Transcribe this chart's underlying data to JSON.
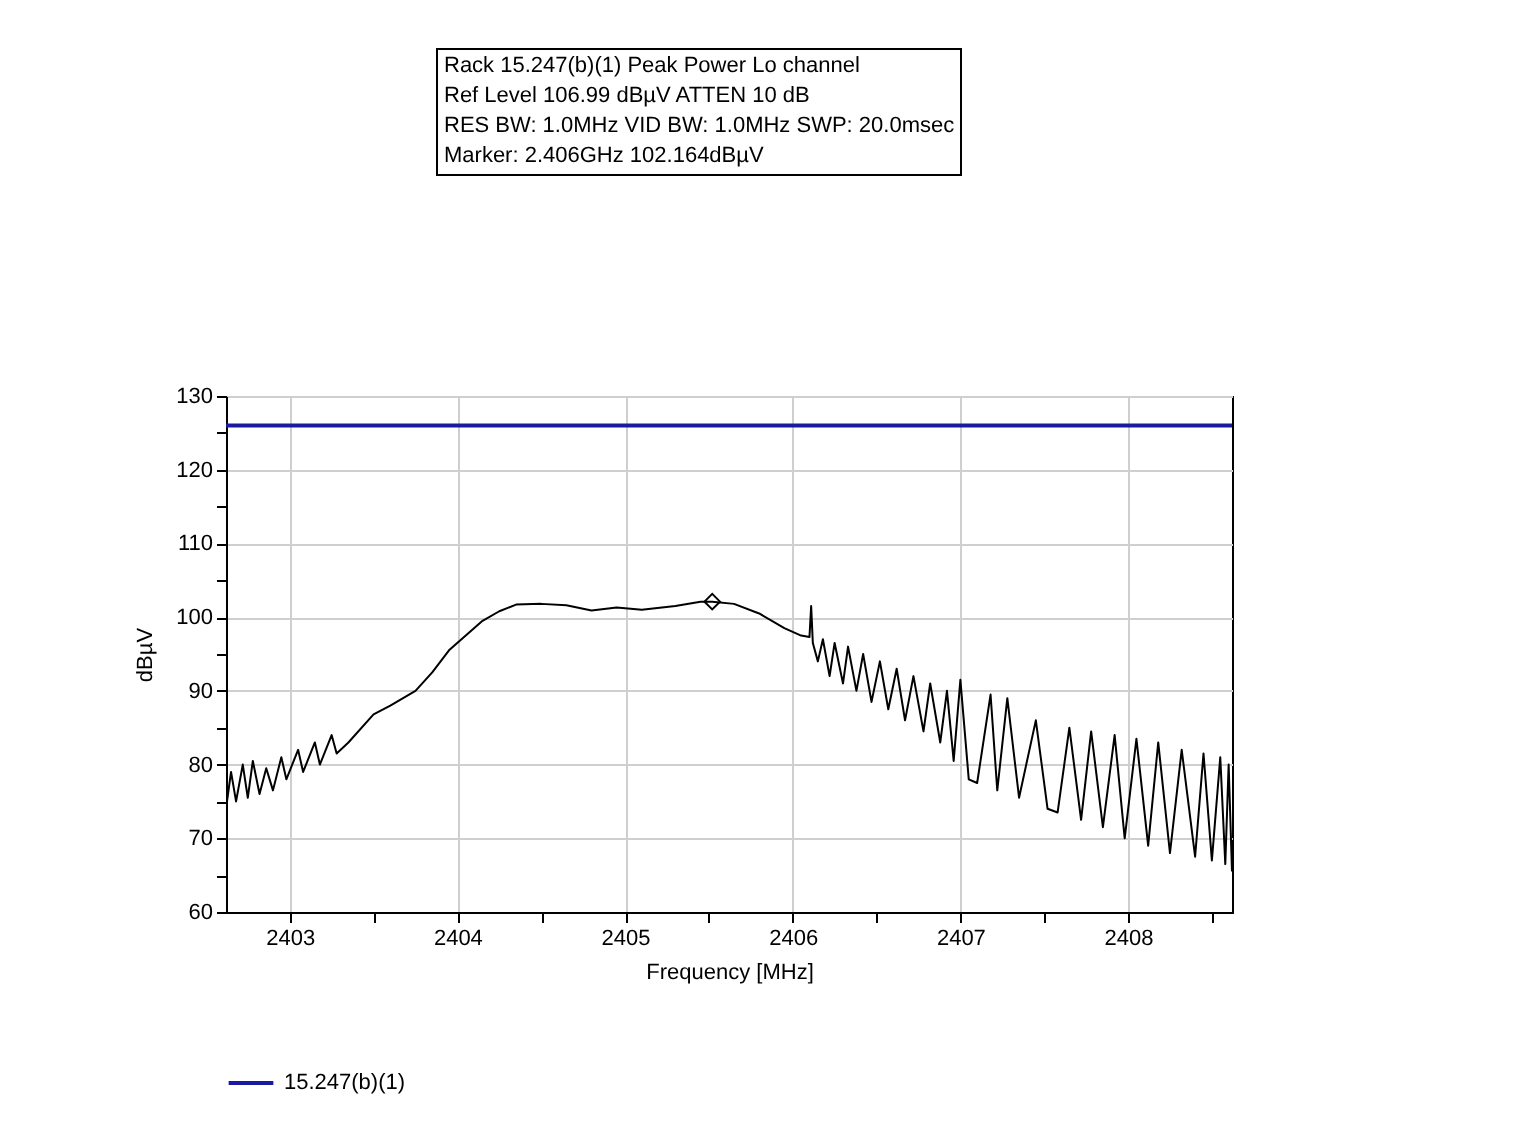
{
  "chart_data": {
    "type": "line",
    "title": "Rack 15.247(b)(1) Peak Power Lo channel",
    "annotations": [
      "Ref Level 106.99 dBµV    ATTEN 10 dB",
      "RES BW: 1.0MHz  VID BW: 1.0MHz  SWP: 20.0msec",
      "Marker: 2.406GHz  102.164dBµV"
    ],
    "xlabel": "Frequency [MHz]",
    "ylabel": "dBµV",
    "xlim": [
      2402.62,
      2408.62
    ],
    "ylim": [
      60,
      130
    ],
    "xticks": [
      2403,
      {
        "value": 2403.5,
        "label": null
      },
      2404,
      {
        "value": 2404.5,
        "label": null
      },
      2405,
      {
        "value": 2405.5,
        "label": null
      },
      2406,
      {
        "value": 2406.5,
        "label": null
      },
      2407,
      {
        "value": 2407.5,
        "label": null
      },
      2408,
      {
        "value": 2408.5,
        "label": null
      }
    ],
    "yticks": [
      60,
      {
        "value": 65,
        "label": null
      },
      70,
      {
        "value": 75,
        "label": null
      },
      80,
      {
        "value": 85,
        "label": null
      },
      90,
      {
        "value": 95,
        "label": null
      },
      100,
      {
        "value": 105,
        "label": null
      },
      110,
      {
        "value": 115,
        "label": null
      },
      120,
      {
        "value": 125,
        "label": null
      },
      130
    ],
    "grid": true,
    "legend": "bottom",
    "line_style": "solid",
    "series": [
      {
        "color": "#000000",
        "x": [
          2402.62,
          2402.65,
          2402.68,
          2402.72,
          2402.75,
          2402.78,
          2402.82,
          2402.86,
          2402.9,
          2402.95,
          2402.98,
          2403.05,
          2403.08,
          2403.15,
          2403.18,
          2403.25,
          2403.28,
          2403.35,
          2403.5,
          2403.6,
          2403.75,
          2403.85,
          2403.95,
          2404.05,
          2404.15,
          2404.25,
          2404.35,
          2404.5,
          2404.65,
          2404.8,
          2404.95,
          2405.1,
          2405.3,
          2405.45,
          2405.52,
          2405.65,
          2405.8,
          2405.95,
          2406.05,
          2406.1,
          2406.11,
          2406.12,
          2406.15,
          2406.18,
          2406.22,
          2406.25,
          2406.3,
          2406.33,
          2406.38,
          2406.42,
          2406.47,
          2406.52,
          2406.57,
          2406.62,
          2406.67,
          2406.72,
          2406.78,
          2406.82,
          2406.88,
          2406.92,
          2406.96,
          2407.0,
          2407.05,
          2407.1,
          2407.18,
          2407.22,
          2407.28,
          2407.35,
          2407.45,
          2407.52,
          2407.58,
          2407.65,
          2407.72,
          2407.78,
          2407.85,
          2407.92,
          2407.98,
          2408.05,
          2408.12,
          2408.18,
          2408.25,
          2408.32,
          2408.4,
          2408.45,
          2408.5,
          2408.55,
          2408.58,
          2408.6,
          2408.62
        ],
        "values": [
          74,
          79,
          75,
          80,
          75.5,
          80.5,
          76,
          79.5,
          76.5,
          81,
          78,
          82,
          79,
          83,
          80,
          84,
          81.5,
          83,
          86.8,
          88,
          90,
          92.5,
          95.5,
          97.5,
          99.5,
          100.8,
          101.7,
          101.8,
          101.6,
          100.9,
          101.3,
          101,
          101.5,
          102.1,
          102.1,
          101.8,
          100.5,
          98.5,
          97.5,
          97.3,
          101.5,
          96.5,
          94,
          97,
          92,
          96.5,
          91,
          96,
          90,
          95,
          88.5,
          94,
          87.5,
          93,
          86,
          92,
          84.5,
          91,
          83,
          90,
          80.5,
          91.5,
          78,
          77.5,
          89.5,
          76.5,
          89,
          75.5,
          86,
          74,
          73.5,
          85,
          72.5,
          84.5,
          71.5,
          84,
          70,
          83.5,
          69,
          83,
          68,
          82,
          67.5,
          81.5,
          67,
          81,
          66.5,
          80,
          65.5
        ]
      },
      {
        "type": "scatter",
        "marker": "diamond",
        "color": "#000000",
        "x": [
          2405.52
        ],
        "values": [
          102.1
        ]
      },
      {
        "name": "15.247(b)(1)",
        "color": "#1a1aa0",
        "x": [
          2402.62,
          2408.62
        ],
        "values": [
          126,
          126
        ]
      }
    ]
  }
}
